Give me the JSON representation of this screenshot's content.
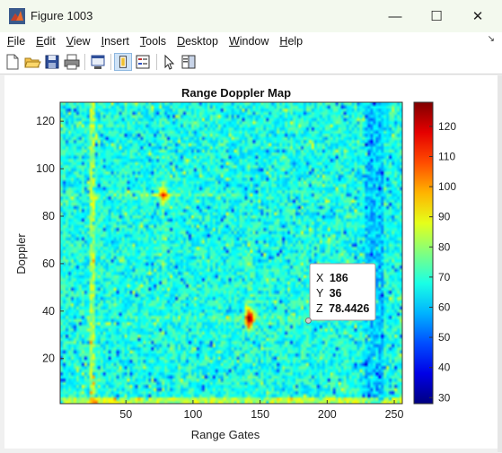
{
  "window": {
    "title": "Figure 1003",
    "minimize_glyph": "—",
    "maximize_glyph": "☐",
    "close_glyph": "✕"
  },
  "menu": {
    "items": [
      {
        "label": "File",
        "accel": "F",
        "rest": "ile"
      },
      {
        "label": "Edit",
        "accel": "E",
        "rest": "dit"
      },
      {
        "label": "View",
        "accel": "V",
        "rest": "iew"
      },
      {
        "label": "Insert",
        "accel": "I",
        "rest": "nsert"
      },
      {
        "label": "Tools",
        "accel": "T",
        "rest": "ools"
      },
      {
        "label": "Desktop",
        "accel": "D",
        "rest": "esktop"
      },
      {
        "label": "Window",
        "accel": "W",
        "rest": "indow"
      },
      {
        "label": "Help",
        "accel": "H",
        "rest": "elp"
      }
    ],
    "dock_arrow": "↘"
  },
  "toolbar": {
    "icons": [
      "new-figure-icon",
      "open-file-icon",
      "save-icon",
      "print-icon",
      "link-plot-icon",
      "colorbar-toggle-icon",
      "legend-toggle-icon",
      "pointer-icon",
      "property-inspector-icon"
    ]
  },
  "chart_data": {
    "type": "heatmap",
    "title": "Range Doppler Map",
    "xlabel": "Range Gates",
    "ylabel": "Doppler",
    "xlim": [
      1,
      256
    ],
    "ylim": [
      1,
      128
    ],
    "xticks": [
      50,
      100,
      150,
      200,
      250
    ],
    "yticks": [
      20,
      40,
      60,
      80,
      100,
      120
    ],
    "colorbar": {
      "range": [
        28,
        128
      ],
      "ticks": [
        30,
        40,
        50,
        60,
        70,
        80,
        90,
        100,
        110,
        120
      ],
      "colormap": "jet"
    },
    "targets": [
      {
        "x": 142,
        "y": 37,
        "value": 120
      },
      {
        "x": 78,
        "y": 89,
        "value": 100
      }
    ],
    "datatip": {
      "x_label": "X",
      "x_value": "186",
      "y_label": "Y",
      "y_value": "36",
      "z_label": "Z",
      "z_value": "78.4426",
      "x": 186,
      "y": 36
    }
  }
}
